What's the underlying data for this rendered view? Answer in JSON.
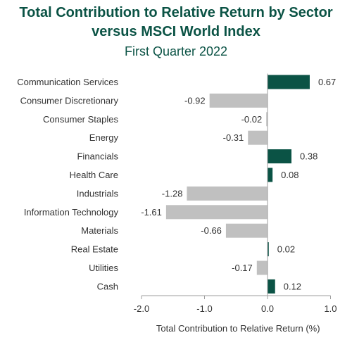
{
  "chart_data": {
    "type": "bar",
    "orientation": "horizontal",
    "title": "Total Contribution to Relative Return by Sector versus MSCI World Index",
    "title_line1": "Total Contribution to Relative Return by Sector",
    "title_line2": "versus MSCI World Index",
    "subtitle": "First Quarter 2022",
    "xlabel": "Total Contribution to Relative Return (%)",
    "xlim": [
      -2.0,
      1.0
    ],
    "xticks": [
      "-2.0",
      "-1.0",
      "0.0",
      "1.0"
    ],
    "grid": false,
    "categories": [
      "Communication Services",
      "Consumer Discretionary",
      "Consumer Staples",
      "Energy",
      "Financials",
      "Health Care",
      "Industrials",
      "Information Technology",
      "Materials",
      "Real Estate",
      "Utilities",
      "Cash"
    ],
    "values": [
      0.67,
      -0.92,
      -0.02,
      -0.31,
      0.38,
      0.08,
      -1.28,
      -1.61,
      -0.66,
      0.02,
      -0.17,
      0.12
    ],
    "value_labels": [
      "0.67",
      "-0.92",
      "-0.02",
      "-0.31",
      "0.38",
      "0.08",
      "-1.28",
      "-1.61",
      "-0.66",
      "0.02",
      "-0.17",
      "0.12"
    ],
    "colors": {
      "positive": "#0b5345",
      "negative": "#c0c0c0",
      "axis": "#9e9e9e"
    }
  }
}
